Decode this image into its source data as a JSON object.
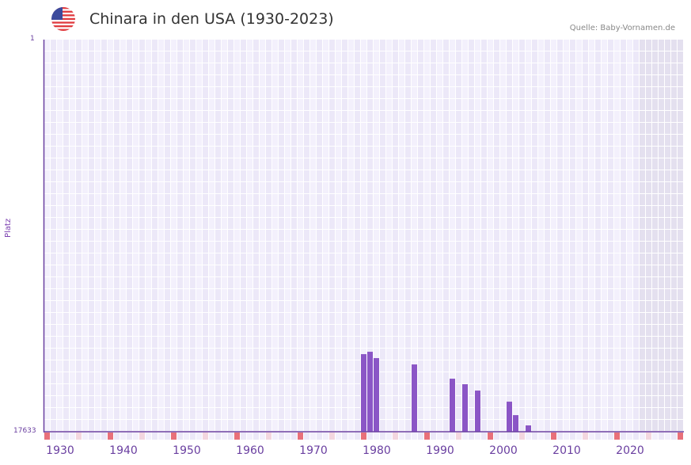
{
  "header": {
    "title": "Chinara in den USA (1930-2023)",
    "source": "Quelle: Baby-Vornamen.de",
    "flag_icon": "usa-flag-icon"
  },
  "axes": {
    "y_top": "1",
    "y_bottom": "17633",
    "y_title": "Platz"
  },
  "colors": {
    "bar": "#8b56c6",
    "axis": "#6a3fa0",
    "marker": "#e8707a",
    "marker_light": "#f3d6df",
    "grid_a": "#f3f0fc",
    "grid_b": "#ece8f8",
    "future": "#e4e0ef"
  },
  "chart_data": {
    "type": "bar",
    "title": "Chinara in den USA (1930-2023)",
    "xlabel": "",
    "ylabel": "Platz",
    "ylim": [
      17633,
      1
    ],
    "x_ticks": [
      1930,
      1940,
      1950,
      1960,
      1970,
      1980,
      1990,
      2000,
      2010,
      2020
    ],
    "categories": [
      1978,
      1979,
      1980,
      1986,
      1992,
      1994,
      1996,
      2001,
      2002,
      2004
    ],
    "values": [
      14144,
      14037,
      14322,
      14607,
      15248,
      15497,
      15782,
      16281,
      16887,
      17348
    ]
  }
}
